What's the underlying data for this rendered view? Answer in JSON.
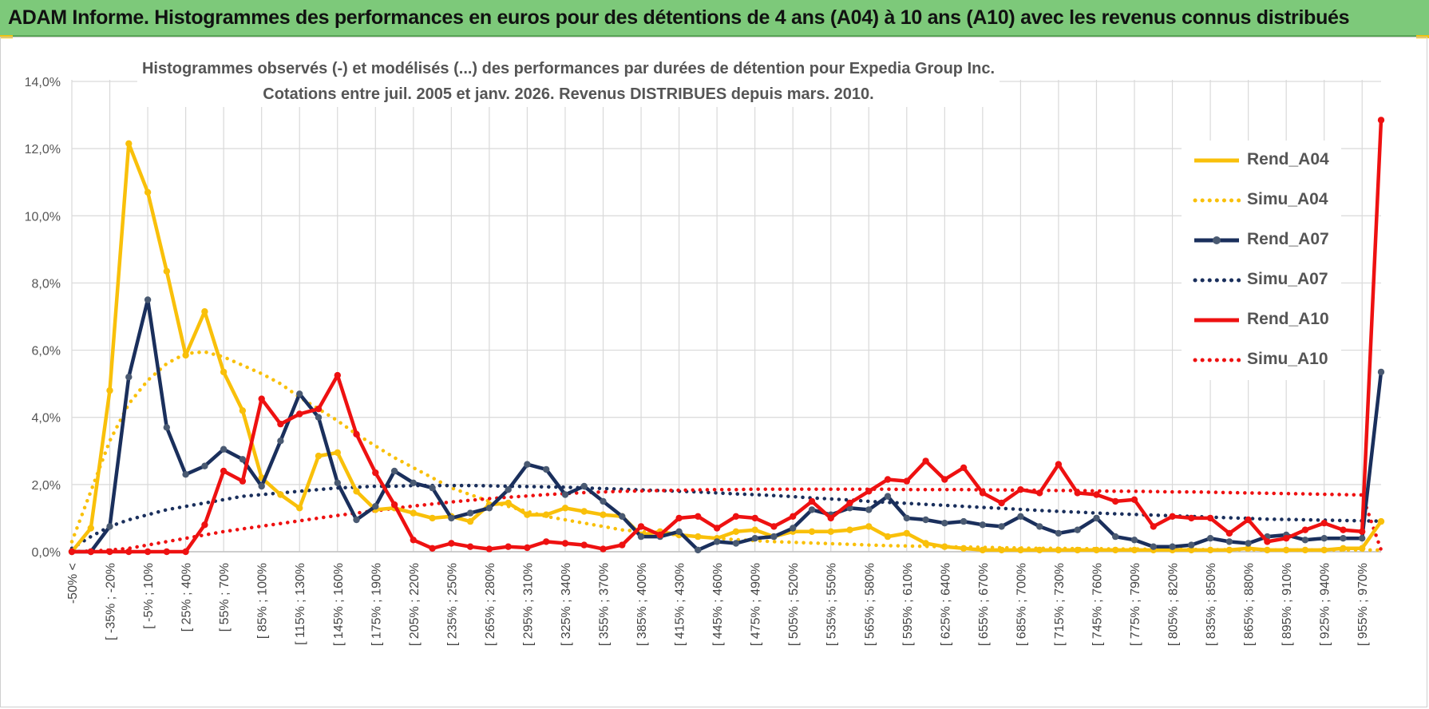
{
  "header": {
    "title": "ADAM Informe. Histogrammes des performances en euros pour des détentions de 4 ans (A04) à 10 ans (A10) avec les revenus connus distribués"
  },
  "colors": {
    "banner": "#7dc97a",
    "a04": "#f9c00a",
    "a07": "#1a2f5c",
    "a07_marker": "#4a5a72",
    "a10": "#ee1111",
    "grid": "#d9d9d9",
    "axis_text": "#555555"
  },
  "chart_data": {
    "type": "line",
    "title": "Histogrammes observés (-) et modélisés (...) des performances par durées de détention pour Expedia Group Inc.",
    "subtitle": "Cotations entre juil. 2005 et janv. 2026. Revenus DISTRIBUES depuis mars. 2010.",
    "ylim": [
      0,
      14
    ],
    "y_ticks": [
      "0,0%",
      "2,0%",
      "4,0%",
      "6,0%",
      "8,0%",
      "10,0%",
      "12,0%",
      "14,0%"
    ],
    "x_count": 70,
    "x_tick_labels": [
      "-50% <",
      "[ -35% ; -20%",
      "[ -5% ; 10%",
      "[ 25% ; 40%",
      "[ 55% ; 70%",
      "[ 85% ; 100%",
      "[ 115% ; 130%",
      "[ 145% ; 160%",
      "[ 175% ; 190%",
      "[ 205% ; 220%",
      "[ 235% ; 250%",
      "[ 265% ; 280%",
      "[ 295% ; 310%",
      "[ 325% ; 340%",
      "[ 355% ; 370%",
      "[ 385% ; 400%",
      "[ 415% ; 430%",
      "[ 445% ; 460%",
      "[ 475% ; 490%",
      "[ 505% ; 520%",
      "[ 535% ; 550%",
      "[ 565% ; 580%",
      "[ 595% ; 610%",
      "[ 625% ; 640%",
      "[ 655% ; 670%",
      "[ 685% ; 700%",
      "[ 715% ; 730%",
      "[ 745% ; 760%",
      "[ 775% ; 790%",
      "[ 805% ; 820%",
      "[ 835% ; 850%",
      "[ 865% ; 880%",
      "[ 895% ; 910%",
      "[ 925% ; 940%",
      "[ 955% ; 970%"
    ],
    "x_tick_indices": [
      0,
      2,
      4,
      6,
      8,
      10,
      12,
      14,
      16,
      18,
      20,
      22,
      24,
      26,
      28,
      30,
      32,
      34,
      36,
      38,
      40,
      42,
      44,
      46,
      48,
      50,
      52,
      54,
      56,
      58,
      60,
      62,
      64,
      66,
      68
    ],
    "series": [
      {
        "name": "Rend_A04",
        "style": "solid",
        "color": "#f9c00a",
        "values": [
          0.0,
          0.7,
          4.8,
          12.15,
          10.7,
          8.35,
          5.85,
          7.15,
          5.35,
          4.2,
          2.2,
          1.7,
          1.3,
          2.85,
          2.95,
          1.8,
          1.25,
          1.3,
          1.15,
          1.0,
          1.05,
          0.9,
          1.4,
          1.45,
          1.1,
          1.1,
          1.3,
          1.2,
          1.1,
          1.05,
          0.5,
          0.6,
          0.5,
          0.45,
          0.4,
          0.6,
          0.65,
          0.45,
          0.6,
          0.6,
          0.6,
          0.65,
          0.75,
          0.45,
          0.55,
          0.25,
          0.15,
          0.1,
          0.05,
          0.05,
          0.05,
          0.05,
          0.05,
          0.05,
          0.05,
          0.05,
          0.05,
          0.05,
          0.05,
          0.05,
          0.05,
          0.05,
          0.1,
          0.05,
          0.05,
          0.05,
          0.05,
          0.1,
          0.1,
          0.9
        ]
      },
      {
        "name": "Simu_A04",
        "style": "dotted",
        "color": "#f9c00a",
        "values": [
          0.3,
          1.8,
          3.3,
          4.4,
          5.1,
          5.6,
          5.9,
          5.95,
          5.8,
          5.55,
          5.3,
          5.0,
          4.6,
          4.25,
          3.9,
          3.5,
          3.15,
          2.8,
          2.5,
          2.2,
          1.9,
          1.7,
          1.5,
          1.35,
          1.2,
          1.05,
          0.95,
          0.85,
          0.75,
          0.65,
          0.6,
          0.55,
          0.5,
          0.45,
          0.4,
          0.36,
          0.33,
          0.3,
          0.28,
          0.26,
          0.24,
          0.22,
          0.2,
          0.18,
          0.17,
          0.16,
          0.15,
          0.14,
          0.13,
          0.12,
          0.11,
          0.1,
          0.1,
          0.09,
          0.09,
          0.08,
          0.08,
          0.07,
          0.07,
          0.07,
          0.06,
          0.06,
          0.06,
          0.05,
          0.05,
          0.05,
          0.05,
          0.05,
          0.05,
          0.05
        ]
      },
      {
        "name": "Rend_A07",
        "style": "solid",
        "color": "#1a2f5c",
        "values": [
          0.0,
          0.0,
          0.75,
          5.2,
          7.5,
          3.7,
          2.3,
          2.55,
          3.05,
          2.75,
          1.95,
          3.3,
          4.7,
          4.0,
          2.05,
          0.95,
          1.35,
          2.4,
          2.05,
          1.9,
          1.0,
          1.15,
          1.3,
          1.85,
          2.6,
          2.45,
          1.7,
          1.95,
          1.5,
          1.05,
          0.45,
          0.45,
          0.6,
          0.05,
          0.3,
          0.25,
          0.4,
          0.45,
          0.7,
          1.25,
          1.1,
          1.3,
          1.25,
          1.65,
          1.0,
          0.95,
          0.85,
          0.9,
          0.8,
          0.75,
          1.05,
          0.75,
          0.55,
          0.65,
          1.0,
          0.45,
          0.35,
          0.15,
          0.15,
          0.2,
          0.4,
          0.3,
          0.25,
          0.45,
          0.5,
          0.35,
          0.4,
          0.4,
          0.4,
          5.35
        ]
      },
      {
        "name": "Simu_A07",
        "style": "dotted",
        "color": "#1a2f5c",
        "values": [
          0.1,
          0.45,
          0.75,
          0.95,
          1.1,
          1.25,
          1.35,
          1.45,
          1.55,
          1.65,
          1.7,
          1.75,
          1.8,
          1.85,
          1.9,
          1.92,
          1.95,
          1.95,
          1.97,
          1.97,
          1.97,
          1.97,
          1.96,
          1.95,
          1.94,
          1.93,
          1.92,
          1.9,
          1.88,
          1.86,
          1.84,
          1.82,
          1.8,
          1.78,
          1.75,
          1.72,
          1.7,
          1.67,
          1.64,
          1.6,
          1.57,
          1.54,
          1.5,
          1.47,
          1.44,
          1.41,
          1.38,
          1.35,
          1.32,
          1.29,
          1.26,
          1.23,
          1.2,
          1.18,
          1.15,
          1.13,
          1.11,
          1.09,
          1.07,
          1.05,
          1.03,
          1.01,
          0.99,
          0.97,
          0.96,
          0.95,
          0.94,
          0.93,
          0.92,
          0.91
        ]
      },
      {
        "name": "Rend_A10",
        "style": "solid",
        "color": "#ee1111",
        "values": [
          0.0,
          0.0,
          0.0,
          0.0,
          0.0,
          0.0,
          0.0,
          0.8,
          2.4,
          2.1,
          4.55,
          3.8,
          4.1,
          4.25,
          5.25,
          3.5,
          2.35,
          1.4,
          0.35,
          0.1,
          0.25,
          0.15,
          0.08,
          0.15,
          0.12,
          0.3,
          0.25,
          0.2,
          0.08,
          0.2,
          0.75,
          0.5,
          1.0,
          1.05,
          0.7,
          1.05,
          1.0,
          0.75,
          1.05,
          1.5,
          1.0,
          1.45,
          1.8,
          2.15,
          2.1,
          2.7,
          2.15,
          2.5,
          1.75,
          1.45,
          1.85,
          1.75,
          2.6,
          1.75,
          1.7,
          1.5,
          1.55,
          0.75,
          1.05,
          1.0,
          1.0,
          0.55,
          0.95,
          0.3,
          0.4,
          0.65,
          0.85,
          0.65,
          0.6,
          12.85
        ]
      },
      {
        "name": "Simu_A10",
        "style": "dotted",
        "color": "#ee1111",
        "values": [
          0.0,
          0.02,
          0.05,
          0.1,
          0.2,
          0.3,
          0.4,
          0.5,
          0.6,
          0.68,
          0.76,
          0.84,
          0.92,
          1.0,
          1.08,
          1.15,
          1.22,
          1.29,
          1.36,
          1.42,
          1.48,
          1.53,
          1.58,
          1.62,
          1.66,
          1.7,
          1.73,
          1.76,
          1.78,
          1.8,
          1.81,
          1.82,
          1.83,
          1.84,
          1.85,
          1.85,
          1.86,
          1.86,
          1.86,
          1.86,
          1.86,
          1.86,
          1.86,
          1.86,
          1.85,
          1.85,
          1.85,
          1.85,
          1.84,
          1.84,
          1.83,
          1.83,
          1.82,
          1.82,
          1.81,
          1.8,
          1.8,
          1.79,
          1.78,
          1.78,
          1.77,
          1.76,
          1.75,
          1.74,
          1.73,
          1.72,
          1.71,
          1.7,
          1.69,
          0.05
        ]
      }
    ]
  },
  "legend": {
    "items": [
      {
        "label": "Rend_A04"
      },
      {
        "label": "Simu_A04"
      },
      {
        "label": "Rend_A07"
      },
      {
        "label": "Simu_A07"
      },
      {
        "label": "Rend_A10"
      },
      {
        "label": "Simu_A10"
      }
    ]
  }
}
